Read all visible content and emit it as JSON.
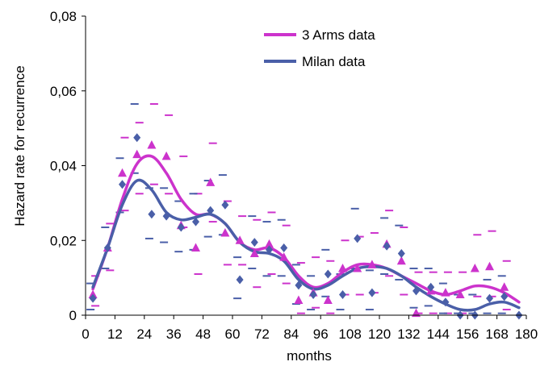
{
  "chart_data": {
    "type": "scatter",
    "title": "",
    "xlabel": "months",
    "ylabel": "Hazard rate for recurrence",
    "xlim": [
      0,
      180
    ],
    "ylim": [
      0,
      0.08
    ],
    "x_ticks": [
      "0",
      "12",
      "24",
      "36",
      "48",
      "60",
      "72",
      "84",
      "96",
      "108",
      "120",
      "132",
      "144",
      "156",
      "168",
      "180"
    ],
    "y_ticks": [
      "0",
      "0,02",
      "0,04",
      "0,06",
      "0,08"
    ],
    "grid": false,
    "legend_position": "top-right",
    "series": [
      {
        "name": "3 Arms data",
        "color": "#cc33cc",
        "marker": "triangle",
        "points": [
          {
            "x": 3,
            "y": 0.0055
          },
          {
            "x": 9,
            "y": 0.018
          },
          {
            "x": 15,
            "y": 0.038
          },
          {
            "x": 21,
            "y": 0.043
          },
          {
            "x": 27,
            "y": 0.0455
          },
          {
            "x": 33,
            "y": 0.0425
          },
          {
            "x": 39,
            "y": 0.024
          },
          {
            "x": 45,
            "y": 0.018
          },
          {
            "x": 51,
            "y": 0.0355
          },
          {
            "x": 57,
            "y": 0.022
          },
          {
            "x": 63,
            "y": 0.02
          },
          {
            "x": 69,
            "y": 0.0165
          },
          {
            "x": 75,
            "y": 0.019
          },
          {
            "x": 81,
            "y": 0.0155
          },
          {
            "x": 87,
            "y": 0.004
          },
          {
            "x": 93,
            "y": 0.006
          },
          {
            "x": 99,
            "y": 0.004
          },
          {
            "x": 105,
            "y": 0.0125
          },
          {
            "x": 111,
            "y": 0.0125
          },
          {
            "x": 117,
            "y": 0.0135
          },
          {
            "x": 123,
            "y": 0.019
          },
          {
            "x": 129,
            "y": 0.0145
          },
          {
            "x": 135,
            "y": 0.0005
          },
          {
            "x": 141,
            "y": 0.0065
          },
          {
            "x": 147,
            "y": 0.006
          },
          {
            "x": 153,
            "y": 0.0055
          },
          {
            "x": 159,
            "y": 0.0125
          },
          {
            "x": 165,
            "y": 0.013
          },
          {
            "x": 171,
            "y": 0.0075
          }
        ],
        "bounds": [
          {
            "x": 3,
            "upper": 0.0105,
            "lower": 0.0025
          },
          {
            "x": 9,
            "upper": 0.0245,
            "lower": 0.012
          },
          {
            "x": 15,
            "upper": 0.0475,
            "lower": 0.028
          },
          {
            "x": 21,
            "upper": 0.0515,
            "lower": 0.0325
          },
          {
            "x": 27,
            "upper": 0.0565,
            "lower": 0.035
          },
          {
            "x": 33,
            "upper": 0.0535,
            "lower": 0.0325
          },
          {
            "x": 39,
            "upper": 0.0425,
            "lower": 0.0235
          },
          {
            "x": 45,
            "upper": 0.0325,
            "lower": 0.011
          },
          {
            "x": 51,
            "upper": 0.046,
            "lower": 0.025
          },
          {
            "x": 57,
            "upper": 0.0305,
            "lower": 0.0135
          },
          {
            "x": 63,
            "upper": 0.0265,
            "lower": 0.0135
          },
          {
            "x": 69,
            "upper": 0.0255,
            "lower": 0.0075
          },
          {
            "x": 75,
            "upper": 0.0275,
            "lower": 0.011
          },
          {
            "x": 81,
            "upper": 0.024,
            "lower": 0.0085
          },
          {
            "x": 87,
            "upper": 0.014,
            "lower": 0.0005
          },
          {
            "x": 93,
            "upper": 0.0155,
            "lower": 0.002
          },
          {
            "x": 99,
            "upper": 0.0145,
            "lower": 0.0005
          },
          {
            "x": 105,
            "upper": 0.02,
            "lower": 0.0055
          },
          {
            "x": 111,
            "upper": 0.021,
            "lower": 0.0055
          },
          {
            "x": 117,
            "upper": 0.022,
            "lower": 0.006
          },
          {
            "x": 123,
            "upper": 0.028,
            "lower": 0.0105
          },
          {
            "x": 129,
            "upper": 0.0235,
            "lower": 0.0055
          },
          {
            "x": 135,
            "upper": 0.0115,
            "lower": 0.0005
          },
          {
            "x": 141,
            "upper": 0.0115,
            "lower": 0.0005
          },
          {
            "x": 147,
            "upper": 0.0115,
            "lower": 0.0005
          },
          {
            "x": 153,
            "upper": 0.0115,
            "lower": 0.0005
          },
          {
            "x": 159,
            "upper": 0.0215,
            "lower": 0.005
          },
          {
            "x": 165,
            "upper": 0.0225,
            "lower": 0.005
          },
          {
            "x": 171,
            "upper": 0.0145,
            "lower": 0.0015
          }
        ],
        "smooth": [
          {
            "x": 3,
            "y": 0.007
          },
          {
            "x": 9,
            "y": 0.018
          },
          {
            "x": 15,
            "y": 0.031
          },
          {
            "x": 21,
            "y": 0.0405
          },
          {
            "x": 27,
            "y": 0.0425
          },
          {
            "x": 33,
            "y": 0.038
          },
          {
            "x": 39,
            "y": 0.031
          },
          {
            "x": 45,
            "y": 0.027
          },
          {
            "x": 51,
            "y": 0.027
          },
          {
            "x": 57,
            "y": 0.0245
          },
          {
            "x": 63,
            "y": 0.0195
          },
          {
            "x": 69,
            "y": 0.0175
          },
          {
            "x": 75,
            "y": 0.018
          },
          {
            "x": 81,
            "y": 0.0155
          },
          {
            "x": 87,
            "y": 0.0105
          },
          {
            "x": 93,
            "y": 0.0075
          },
          {
            "x": 99,
            "y": 0.0085
          },
          {
            "x": 105,
            "y": 0.0115
          },
          {
            "x": 111,
            "y": 0.0135
          },
          {
            "x": 117,
            "y": 0.0135
          },
          {
            "x": 123,
            "y": 0.0125
          },
          {
            "x": 129,
            "y": 0.0105
          },
          {
            "x": 135,
            "y": 0.0085
          },
          {
            "x": 141,
            "y": 0.0065
          },
          {
            "x": 147,
            "y": 0.0055
          },
          {
            "x": 153,
            "y": 0.0065
          },
          {
            "x": 159,
            "y": 0.0078
          },
          {
            "x": 165,
            "y": 0.0075
          },
          {
            "x": 171,
            "y": 0.006
          },
          {
            "x": 177,
            "y": 0.0035
          }
        ]
      },
      {
        "name": "Milan data",
        "color": "#4a5fa8",
        "marker": "diamond",
        "points": [
          {
            "x": 3,
            "y": 0.0045
          },
          {
            "x": 9,
            "y": 0.018
          },
          {
            "x": 15,
            "y": 0.035
          },
          {
            "x": 21,
            "y": 0.0475
          },
          {
            "x": 27,
            "y": 0.027
          },
          {
            "x": 33,
            "y": 0.0265
          },
          {
            "x": 39,
            "y": 0.0235
          },
          {
            "x": 45,
            "y": 0.025
          },
          {
            "x": 51,
            "y": 0.028
          },
          {
            "x": 57,
            "y": 0.0295
          },
          {
            "x": 63,
            "y": 0.0095
          },
          {
            "x": 69,
            "y": 0.0195
          },
          {
            "x": 75,
            "y": 0.0175
          },
          {
            "x": 81,
            "y": 0.018
          },
          {
            "x": 87,
            "y": 0.008
          },
          {
            "x": 93,
            "y": 0.0055
          },
          {
            "x": 99,
            "y": 0.011
          },
          {
            "x": 105,
            "y": 0.0055
          },
          {
            "x": 111,
            "y": 0.0205
          },
          {
            "x": 117,
            "y": 0.006
          },
          {
            "x": 123,
            "y": 0.0185
          },
          {
            "x": 129,
            "y": 0.0165
          },
          {
            "x": 135,
            "y": 0.0065
          },
          {
            "x": 141,
            "y": 0.0075
          },
          {
            "x": 147,
            "y": 0.0035
          },
          {
            "x": 153,
            "y": 0.0
          },
          {
            "x": 159,
            "y": 0.0
          },
          {
            "x": 165,
            "y": 0.0045
          },
          {
            "x": 171,
            "y": 0.005
          },
          {
            "x": 177,
            "y": 0.0
          }
        ],
        "bounds": [
          {
            "x": 3,
            "upper": 0.0085,
            "lower": 0.0015
          },
          {
            "x": 9,
            "upper": 0.0235,
            "lower": 0.0125
          },
          {
            "x": 15,
            "upper": 0.042,
            "lower": 0.0275
          },
          {
            "x": 21,
            "upper": 0.0565,
            "lower": 0.038
          },
          {
            "x": 27,
            "upper": 0.034,
            "lower": 0.0205
          },
          {
            "x": 33,
            "upper": 0.034,
            "lower": 0.0195
          },
          {
            "x": 39,
            "upper": 0.0305,
            "lower": 0.017
          },
          {
            "x": 45,
            "upper": 0.0325,
            "lower": 0.0175
          },
          {
            "x": 51,
            "upper": 0.036,
            "lower": 0.021
          },
          {
            "x": 57,
            "upper": 0.0375,
            "lower": 0.0215
          },
          {
            "x": 63,
            "upper": 0.0155,
            "lower": 0.0045
          },
          {
            "x": 69,
            "upper": 0.0265,
            "lower": 0.0125
          },
          {
            "x": 75,
            "upper": 0.025,
            "lower": 0.0105
          },
          {
            "x": 81,
            "upper": 0.0255,
            "lower": 0.0105
          },
          {
            "x": 87,
            "upper": 0.0135,
            "lower": 0.003
          },
          {
            "x": 93,
            "upper": 0.0105,
            "lower": 0.0015
          },
          {
            "x": 99,
            "upper": 0.0175,
            "lower": 0.005
          },
          {
            "x": 105,
            "upper": 0.011,
            "lower": 0.0015
          },
          {
            "x": 111,
            "upper": 0.0285,
            "lower": 0.0125
          },
          {
            "x": 117,
            "upper": 0.012,
            "lower": 0.0015
          },
          {
            "x": 123,
            "upper": 0.026,
            "lower": 0.011
          },
          {
            "x": 129,
            "upper": 0.024,
            "lower": 0.0095
          },
          {
            "x": 135,
            "upper": 0.0125,
            "lower": 0.002
          },
          {
            "x": 141,
            "upper": 0.0125,
            "lower": 0.0025
          },
          {
            "x": 147,
            "upper": 0.0085,
            "lower": 0.0005
          },
          {
            "x": 153,
            "upper": 0.0055,
            "lower": 0.0005
          },
          {
            "x": 159,
            "upper": 0.0055,
            "lower": 0.0005
          },
          {
            "x": 165,
            "upper": 0.0095,
            "lower": 0.0005
          },
          {
            "x": 171,
            "upper": 0.0105,
            "lower": 0.0005
          }
        ],
        "smooth": [
          {
            "x": 3,
            "y": 0.0075
          },
          {
            "x": 9,
            "y": 0.018
          },
          {
            "x": 15,
            "y": 0.0295
          },
          {
            "x": 21,
            "y": 0.036
          },
          {
            "x": 27,
            "y": 0.0335
          },
          {
            "x": 33,
            "y": 0.0275
          },
          {
            "x": 39,
            "y": 0.0255
          },
          {
            "x": 45,
            "y": 0.0262
          },
          {
            "x": 51,
            "y": 0.027
          },
          {
            "x": 57,
            "y": 0.0245
          },
          {
            "x": 63,
            "y": 0.0195
          },
          {
            "x": 69,
            "y": 0.017
          },
          {
            "x": 75,
            "y": 0.0165
          },
          {
            "x": 81,
            "y": 0.0145
          },
          {
            "x": 87,
            "y": 0.0095
          },
          {
            "x": 93,
            "y": 0.007
          },
          {
            "x": 99,
            "y": 0.008
          },
          {
            "x": 105,
            "y": 0.0105
          },
          {
            "x": 111,
            "y": 0.0125
          },
          {
            "x": 117,
            "y": 0.013
          },
          {
            "x": 123,
            "y": 0.0125
          },
          {
            "x": 129,
            "y": 0.0105
          },
          {
            "x": 135,
            "y": 0.0075
          },
          {
            "x": 141,
            "y": 0.005
          },
          {
            "x": 147,
            "y": 0.003
          },
          {
            "x": 153,
            "y": 0.0015
          },
          {
            "x": 159,
            "y": 0.0015
          },
          {
            "x": 165,
            "y": 0.003
          },
          {
            "x": 171,
            "y": 0.0035
          },
          {
            "x": 177,
            "y": 0.002
          }
        ]
      }
    ]
  }
}
